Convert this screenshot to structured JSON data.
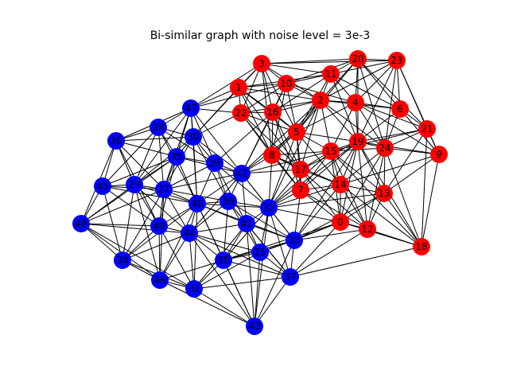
{
  "title": "Bi-similar graph with noise level = 3e-3",
  "colors": {
    "group_a": "#ff0000",
    "group_b": "#0000ff",
    "edge": "#000000",
    "label": "#000000"
  },
  "groups": {
    "red": [
      "0",
      "1",
      "2",
      "3",
      "4",
      "5",
      "6",
      "7",
      "8",
      "9",
      "10",
      "11",
      "12",
      "13",
      "14",
      "15",
      "16",
      "17",
      "18",
      "19",
      "20",
      "21",
      "22",
      "23",
      "24"
    ],
    "blue": [
      "25",
      "26",
      "27",
      "28",
      "29",
      "30",
      "31",
      "32",
      "33",
      "34",
      "35",
      "36",
      "37",
      "38",
      "39",
      "40",
      "41",
      "42",
      "43",
      "44",
      "45",
      "46",
      "47",
      "48",
      "49"
    ]
  }
}
